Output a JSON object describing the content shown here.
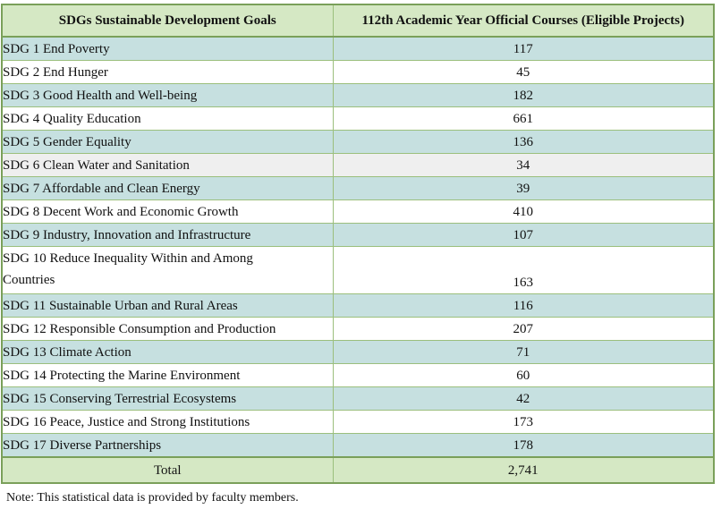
{
  "table": {
    "headers": [
      "SDGs Sustainable Development Goals",
      "112th Academic Year Official Courses (Eligible Projects)"
    ],
    "rows": [
      {
        "goal": "SDG 1 End Poverty",
        "value": "117"
      },
      {
        "goal": "SDG 2 End Hunger",
        "value": "45"
      },
      {
        "goal": "SDG 3 Good Health and Well-being",
        "value": "182"
      },
      {
        "goal": "SDG 4 Quality Education",
        "value": "661"
      },
      {
        "goal": "SDG 5 Gender Equality",
        "value": "136"
      },
      {
        "goal": "SDG 6 Clean Water and Sanitation",
        "value": "34"
      },
      {
        "goal": "SDG 7 Affordable and Clean Energy",
        "value": "39"
      },
      {
        "goal": "SDG 8 Decent Work and Economic Growth",
        "value": "410"
      },
      {
        "goal": "SDG 9 Industry, Innovation and Infrastructure",
        "value": "107"
      },
      {
        "goal_line1": "SDG 10 Reduce Inequality Within and Among",
        "goal_line2": "Countries",
        "value": "163"
      },
      {
        "goal": "SDG 11 Sustainable Urban and Rural Areas",
        "value": "116"
      },
      {
        "goal": "SDG 12 Responsible Consumption and Production",
        "value": "207"
      },
      {
        "goal": "SDG 13 Climate Action",
        "value": "71"
      },
      {
        "goal": "SDG 14 Protecting the Marine Environment",
        "value": "60"
      },
      {
        "goal": "SDG 15 Conserving Terrestrial Ecosystems",
        "value": "42"
      },
      {
        "goal": "SDG 16 Peace, Justice and Strong Institutions",
        "value": "173"
      },
      {
        "goal": "SDG 17 Diverse Partnerships",
        "value": "178"
      }
    ],
    "total": {
      "label": "Total",
      "value": "2,741"
    }
  },
  "note": "Note: This statistical data is provided by faculty members.",
  "colors": {
    "header_bg": "#d5e8c4",
    "shaded_row": "#c6e0e0",
    "border": "#9bbf7d",
    "frame": "#7aa05a"
  }
}
